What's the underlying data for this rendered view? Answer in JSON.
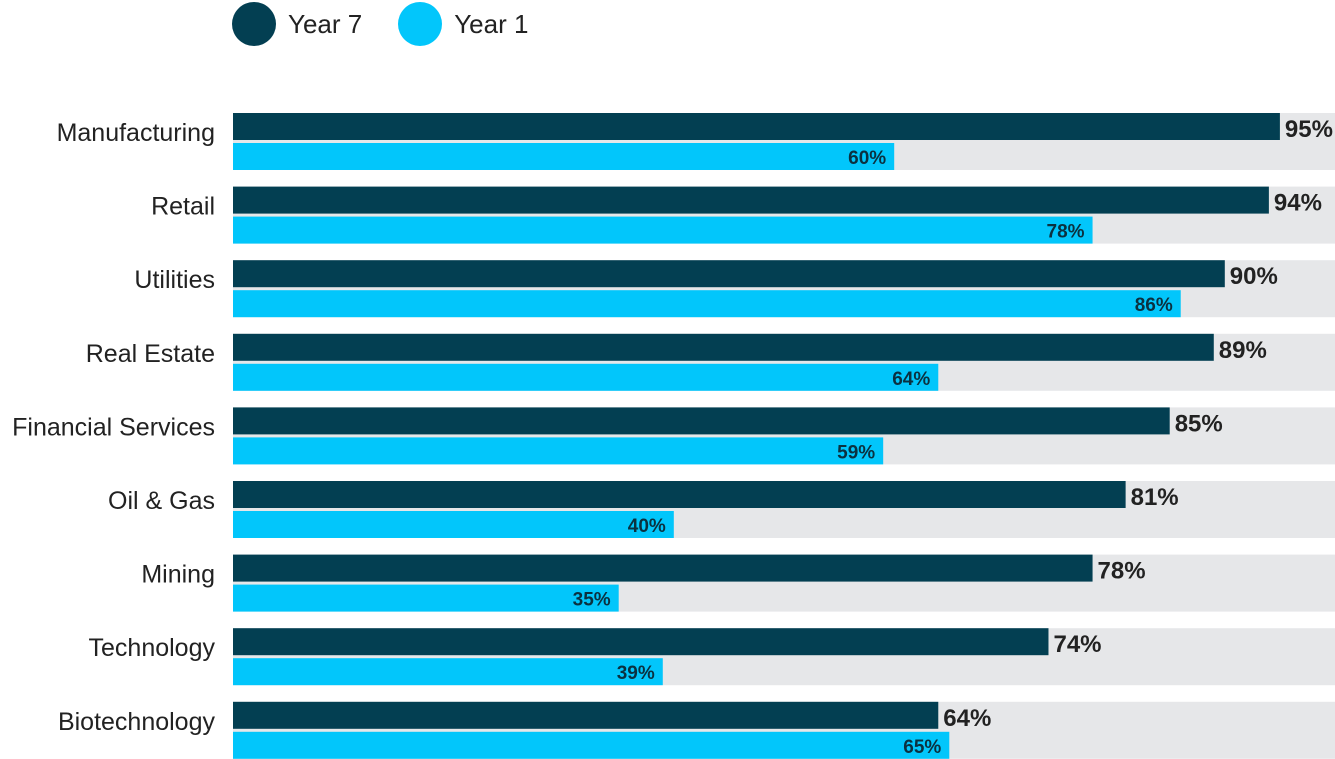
{
  "chart_data": {
    "type": "bar",
    "orientation": "horizontal",
    "categories": [
      "Manufacturing",
      "Retail",
      "Utilities",
      "Real Estate",
      "Financial Services",
      "Oil & Gas",
      "Mining",
      "Technology",
      "Biotechnology"
    ],
    "series": [
      {
        "name": "Year 7",
        "color": "#033f52",
        "values": [
          95,
          94,
          90,
          89,
          85,
          81,
          78,
          74,
          64
        ]
      },
      {
        "name": "Year 1",
        "color": "#02c6fb",
        "values": [
          60,
          78,
          86,
          64,
          59,
          40,
          35,
          39,
          65
        ]
      }
    ],
    "value_suffix": "%",
    "xlim": [
      0,
      100
    ],
    "track_color": "#e6e7e9",
    "legend_position": "top-left",
    "grid": false
  }
}
